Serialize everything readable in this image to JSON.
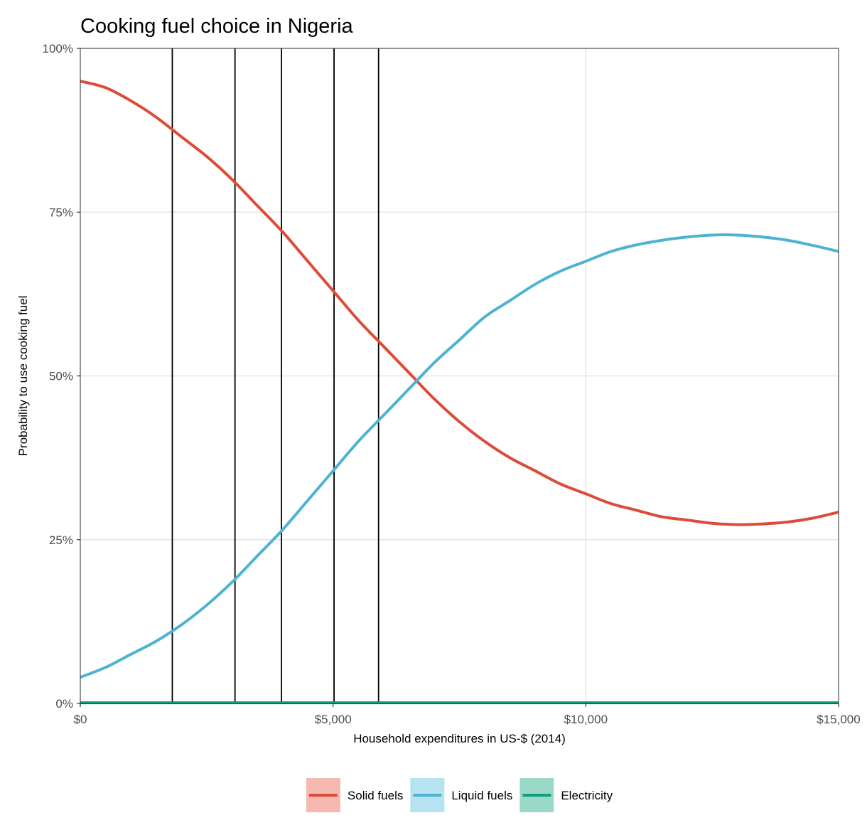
{
  "chart_data": {
    "type": "line",
    "title": "Cooking fuel choice in Nigeria",
    "xlabel": "Household expenditures in US-$ (2014)",
    "ylabel": "Probability to use cooking fuel",
    "xlim": [
      0,
      15000
    ],
    "ylim": [
      0,
      1
    ],
    "x_ticks": [
      0,
      5000,
      10000,
      15000
    ],
    "x_tick_labels": [
      "$0",
      "$5,000",
      "$10,000",
      "$15,000"
    ],
    "y_ticks": [
      0,
      0.25,
      0.5,
      0.75,
      1
    ],
    "y_tick_labels": [
      "0%",
      "25%",
      "50%",
      "75%",
      "100%"
    ],
    "grid": true,
    "legend_position": "bottom",
    "vertical_lines": [
      1820,
      3060,
      3980,
      5020,
      5900
    ],
    "series": [
      {
        "name": "Solid fuels",
        "color": "#dd4b39",
        "legend_fill": "#f5b9b2",
        "points": [
          [
            0,
            0.95
          ],
          [
            500,
            0.94
          ],
          [
            1000,
            0.92
          ],
          [
            1500,
            0.895
          ],
          [
            2000,
            0.865
          ],
          [
            2500,
            0.835
          ],
          [
            3000,
            0.8
          ],
          [
            3500,
            0.76
          ],
          [
            4000,
            0.72
          ],
          [
            4500,
            0.675
          ],
          [
            5000,
            0.63
          ],
          [
            5500,
            0.585
          ],
          [
            6000,
            0.545
          ],
          [
            6500,
            0.505
          ],
          [
            7000,
            0.465
          ],
          [
            7500,
            0.43
          ],
          [
            8000,
            0.4
          ],
          [
            8500,
            0.375
          ],
          [
            9000,
            0.355
          ],
          [
            9500,
            0.335
          ],
          [
            10000,
            0.32
          ],
          [
            10500,
            0.305
          ],
          [
            11000,
            0.295
          ],
          [
            11500,
            0.285
          ],
          [
            12000,
            0.28
          ],
          [
            12500,
            0.275
          ],
          [
            13000,
            0.273
          ],
          [
            13500,
            0.274
          ],
          [
            14000,
            0.277
          ],
          [
            14500,
            0.283
          ],
          [
            15000,
            0.292
          ]
        ]
      },
      {
        "name": "Liquid fuels",
        "color": "#4eb3d3",
        "legend_fill": "#b6e3ef",
        "points": [
          [
            0,
            0.04
          ],
          [
            500,
            0.055
          ],
          [
            1000,
            0.075
          ],
          [
            1500,
            0.095
          ],
          [
            2000,
            0.12
          ],
          [
            2500,
            0.15
          ],
          [
            3000,
            0.185
          ],
          [
            3500,
            0.225
          ],
          [
            4000,
            0.265
          ],
          [
            4500,
            0.31
          ],
          [
            5000,
            0.355
          ],
          [
            5500,
            0.4
          ],
          [
            6000,
            0.44
          ],
          [
            6500,
            0.48
          ],
          [
            7000,
            0.52
          ],
          [
            7500,
            0.555
          ],
          [
            8000,
            0.59
          ],
          [
            8500,
            0.615
          ],
          [
            9000,
            0.64
          ],
          [
            9500,
            0.66
          ],
          [
            10000,
            0.675
          ],
          [
            10500,
            0.69
          ],
          [
            11000,
            0.7
          ],
          [
            11500,
            0.707
          ],
          [
            12000,
            0.712
          ],
          [
            12500,
            0.715
          ],
          [
            13000,
            0.715
          ],
          [
            13500,
            0.712
          ],
          [
            14000,
            0.707
          ],
          [
            14500,
            0.699
          ],
          [
            15000,
            0.69
          ]
        ]
      },
      {
        "name": "Electricity",
        "color": "#0f9e7e",
        "legend_fill": "#9ad9c8",
        "points": [
          [
            0,
            0.001
          ],
          [
            5000,
            0.001
          ],
          [
            10000,
            0.001
          ],
          [
            15000,
            0.001
          ]
        ]
      }
    ]
  }
}
